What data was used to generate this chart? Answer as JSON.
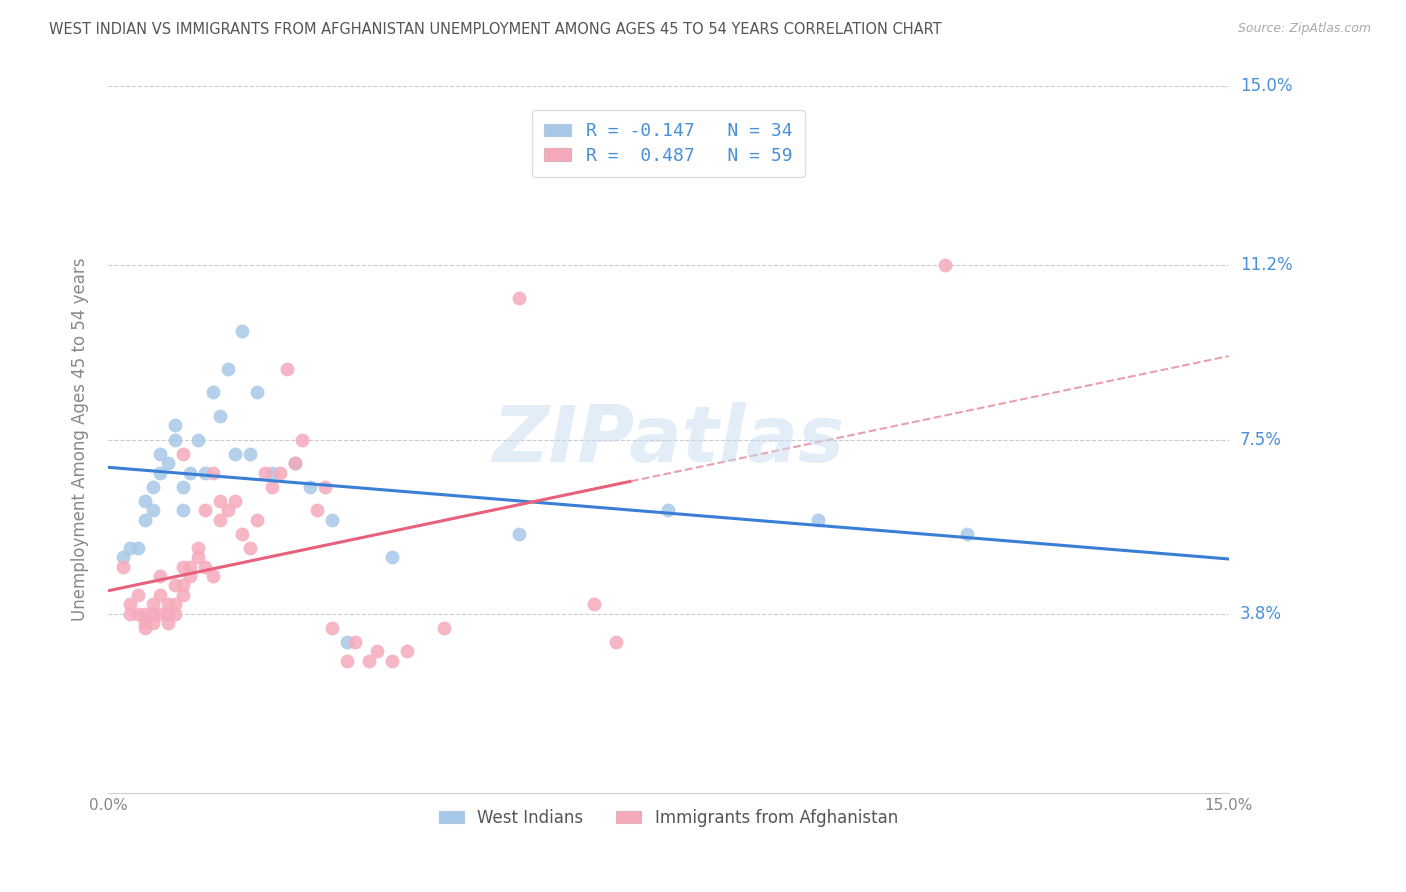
{
  "title": "WEST INDIAN VS IMMIGRANTS FROM AFGHANISTAN UNEMPLOYMENT AMONG AGES 45 TO 54 YEARS CORRELATION CHART",
  "source": "Source: ZipAtlas.com",
  "ylabel": "Unemployment Among Ages 45 to 54 years",
  "xlim": [
    0.0,
    0.15
  ],
  "ylim": [
    0.0,
    0.15
  ],
  "ytick_labels": [
    "3.8%",
    "7.5%",
    "11.2%",
    "15.0%"
  ],
  "ytick_vals": [
    0.038,
    0.075,
    0.112,
    0.15
  ],
  "watermark": "ZIPatlas",
  "legend_R_blue": "-0.147",
  "legend_N_blue": "34",
  "legend_R_pink": "0.487",
  "legend_N_pink": "59",
  "blue_color": "#a8c8e8",
  "pink_color": "#f5aabb",
  "blue_line_color": "#3a7fd5",
  "pink_line_color": "#e8607a",
  "pink_dash_color": "#e8a0b0",
  "title_color": "#555555",
  "axis_label_color": "#888888",
  "right_label_color": "#4a90d9",
  "tick_color": "#aaaaaa",
  "blue_scatter": [
    [
      0.002,
      0.05
    ],
    [
      0.003,
      0.052
    ],
    [
      0.004,
      0.052
    ],
    [
      0.005,
      0.058
    ],
    [
      0.005,
      0.062
    ],
    [
      0.006,
      0.06
    ],
    [
      0.006,
      0.065
    ],
    [
      0.007,
      0.068
    ],
    [
      0.007,
      0.072
    ],
    [
      0.008,
      0.07
    ],
    [
      0.009,
      0.075
    ],
    [
      0.009,
      0.078
    ],
    [
      0.01,
      0.065
    ],
    [
      0.01,
      0.06
    ],
    [
      0.011,
      0.068
    ],
    [
      0.012,
      0.075
    ],
    [
      0.013,
      0.068
    ],
    [
      0.014,
      0.085
    ],
    [
      0.015,
      0.08
    ],
    [
      0.016,
      0.09
    ],
    [
      0.017,
      0.072
    ],
    [
      0.018,
      0.098
    ],
    [
      0.019,
      0.072
    ],
    [
      0.02,
      0.085
    ],
    [
      0.022,
      0.068
    ],
    [
      0.025,
      0.07
    ],
    [
      0.027,
      0.065
    ],
    [
      0.03,
      0.058
    ],
    [
      0.032,
      0.032
    ],
    [
      0.038,
      0.05
    ],
    [
      0.055,
      0.055
    ],
    [
      0.075,
      0.06
    ],
    [
      0.095,
      0.058
    ],
    [
      0.115,
      0.055
    ]
  ],
  "pink_scatter": [
    [
      0.002,
      0.048
    ],
    [
      0.003,
      0.04
    ],
    [
      0.003,
      0.038
    ],
    [
      0.004,
      0.042
    ],
    [
      0.004,
      0.038
    ],
    [
      0.005,
      0.038
    ],
    [
      0.005,
      0.036
    ],
    [
      0.005,
      0.035
    ],
    [
      0.006,
      0.04
    ],
    [
      0.006,
      0.038
    ],
    [
      0.006,
      0.036
    ],
    [
      0.007,
      0.042
    ],
    [
      0.007,
      0.038
    ],
    [
      0.007,
      0.046
    ],
    [
      0.008,
      0.04
    ],
    [
      0.008,
      0.038
    ],
    [
      0.008,
      0.036
    ],
    [
      0.009,
      0.044
    ],
    [
      0.009,
      0.04
    ],
    [
      0.009,
      0.038
    ],
    [
      0.01,
      0.048
    ],
    [
      0.01,
      0.044
    ],
    [
      0.01,
      0.042
    ],
    [
      0.01,
      0.072
    ],
    [
      0.011,
      0.048
    ],
    [
      0.011,
      0.046
    ],
    [
      0.012,
      0.052
    ],
    [
      0.012,
      0.05
    ],
    [
      0.013,
      0.048
    ],
    [
      0.013,
      0.06
    ],
    [
      0.014,
      0.046
    ],
    [
      0.014,
      0.068
    ],
    [
      0.015,
      0.058
    ],
    [
      0.015,
      0.062
    ],
    [
      0.016,
      0.06
    ],
    [
      0.017,
      0.062
    ],
    [
      0.018,
      0.055
    ],
    [
      0.019,
      0.052
    ],
    [
      0.02,
      0.058
    ],
    [
      0.021,
      0.068
    ],
    [
      0.022,
      0.065
    ],
    [
      0.023,
      0.068
    ],
    [
      0.024,
      0.09
    ],
    [
      0.025,
      0.07
    ],
    [
      0.026,
      0.075
    ],
    [
      0.028,
      0.06
    ],
    [
      0.029,
      0.065
    ],
    [
      0.03,
      0.035
    ],
    [
      0.032,
      0.028
    ],
    [
      0.033,
      0.032
    ],
    [
      0.035,
      0.028
    ],
    [
      0.036,
      0.03
    ],
    [
      0.038,
      0.028
    ],
    [
      0.04,
      0.03
    ],
    [
      0.045,
      0.035
    ],
    [
      0.055,
      0.105
    ],
    [
      0.065,
      0.04
    ],
    [
      0.068,
      0.032
    ],
    [
      0.112,
      0.112
    ]
  ]
}
